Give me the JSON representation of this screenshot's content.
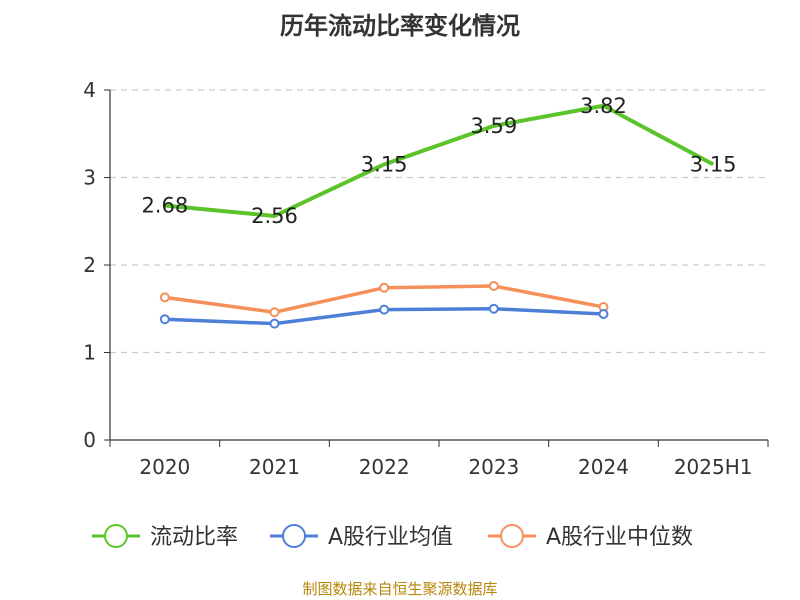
{
  "chart_data": {
    "type": "line",
    "title": "历年流动比率变化情况",
    "categories": [
      "2020",
      "2021",
      "2022",
      "2023",
      "2024",
      "2025H1"
    ],
    "ylim": [
      0,
      4
    ],
    "yticks": [
      0,
      1,
      2,
      3,
      4
    ],
    "grid": true,
    "legend_position": "bottom",
    "series": [
      {
        "name": "流动比率",
        "color": "#5cc42b",
        "values": [
          2.68,
          2.56,
          3.15,
          3.59,
          3.82,
          3.15
        ],
        "labels": [
          "2.68",
          "2.56",
          "3.15",
          "3.59",
          "3.82",
          "3.15"
        ],
        "show_markers": false
      },
      {
        "name": "A股行业均值",
        "color": "#4e7fd8",
        "values": [
          1.38,
          1.33,
          1.49,
          1.5,
          1.44,
          null
        ],
        "show_markers": true
      },
      {
        "name": "A股行业中位数",
        "color": "#f5905a",
        "values": [
          1.63,
          1.46,
          1.74,
          1.76,
          1.52,
          null
        ],
        "show_markers": true
      }
    ]
  },
  "footer": {
    "source": "制图数据来自恒生聚源数据库"
  }
}
